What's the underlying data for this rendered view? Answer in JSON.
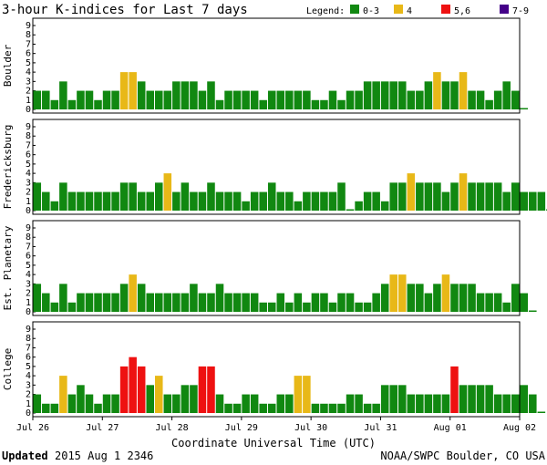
{
  "chart_data": {
    "type": "bar",
    "title": "3-hour K-indices for Last 7 days",
    "legend": {
      "label": "Legend:",
      "entries": [
        {
          "label": "0-3",
          "color": "#118811"
        },
        {
          "label": "4",
          "color": "#e8b818"
        },
        {
          "label": "5,6",
          "color": "#ee1111"
        },
        {
          "label": "7-9",
          "color": "#440088"
        }
      ]
    },
    "xlabel": "Coordinate Universal Time (UTC)",
    "x_ticks": [
      "Jul 26",
      "Jul 27",
      "Jul 28",
      "Jul 29",
      "Jul 30",
      "Jul 31",
      "Aug 01",
      "Aug 02"
    ],
    "y_ticks": [
      "0",
      "1",
      "2",
      "3",
      "4",
      "5",
      "6",
      "7",
      "8",
      "9"
    ],
    "ylim": [
      0,
      9
    ],
    "panels": [
      {
        "name": "Boulder",
        "values": [
          2,
          2,
          1,
          3,
          1,
          2,
          2,
          1,
          2,
          2,
          4,
          4,
          3,
          2,
          2,
          2,
          3,
          3,
          3,
          2,
          3,
          1,
          2,
          2,
          2,
          2,
          1,
          2,
          2,
          2,
          2,
          2,
          1,
          1,
          2,
          1,
          2,
          2,
          3,
          3,
          3,
          3,
          3,
          2,
          2,
          3,
          4,
          3,
          3,
          4,
          2,
          2,
          1,
          2,
          3,
          2,
          0
        ]
      },
      {
        "name": "Fredericksburg",
        "values": [
          3,
          2,
          1,
          3,
          2,
          2,
          2,
          2,
          2,
          2,
          3,
          3,
          2,
          2,
          3,
          4,
          2,
          3,
          2,
          2,
          3,
          2,
          2,
          2,
          1,
          2,
          2,
          3,
          2,
          2,
          1,
          2,
          2,
          2,
          2,
          3,
          0,
          1,
          2,
          2,
          1,
          3,
          3,
          4,
          3,
          3,
          3,
          2,
          3,
          4,
          3,
          3,
          3,
          3,
          2,
          3,
          2,
          2,
          2,
          0
        ]
      },
      {
        "name": "Est. Planetary",
        "values": [
          3,
          2,
          1,
          3,
          1,
          2,
          2,
          2,
          2,
          2,
          3,
          4,
          3,
          2,
          2,
          2,
          2,
          2,
          3,
          2,
          2,
          3,
          2,
          2,
          2,
          2,
          1,
          1,
          2,
          1,
          2,
          1,
          2,
          2,
          1,
          2,
          2,
          1,
          1,
          2,
          3,
          4,
          4,
          3,
          3,
          2,
          3,
          4,
          3,
          3,
          3,
          2,
          2,
          2,
          1,
          3,
          2,
          0
        ]
      },
      {
        "name": "College",
        "values": [
          2,
          1,
          1,
          4,
          2,
          3,
          2,
          1,
          2,
          2,
          5,
          6,
          5,
          3,
          4,
          2,
          2,
          3,
          3,
          5,
          5,
          2,
          1,
          1,
          2,
          2,
          1,
          1,
          2,
          2,
          4,
          4,
          1,
          1,
          1,
          1,
          2,
          2,
          1,
          1,
          3,
          3,
          3,
          2,
          2,
          2,
          2,
          2,
          5,
          3,
          3,
          3,
          3,
          2,
          2,
          2,
          3,
          2,
          0
        ]
      }
    ]
  },
  "footer": {
    "updated_label": "Updated",
    "updated_value": "2015 Aug  1 2346",
    "credit": "NOAA/SWPC Boulder, CO USA"
  }
}
